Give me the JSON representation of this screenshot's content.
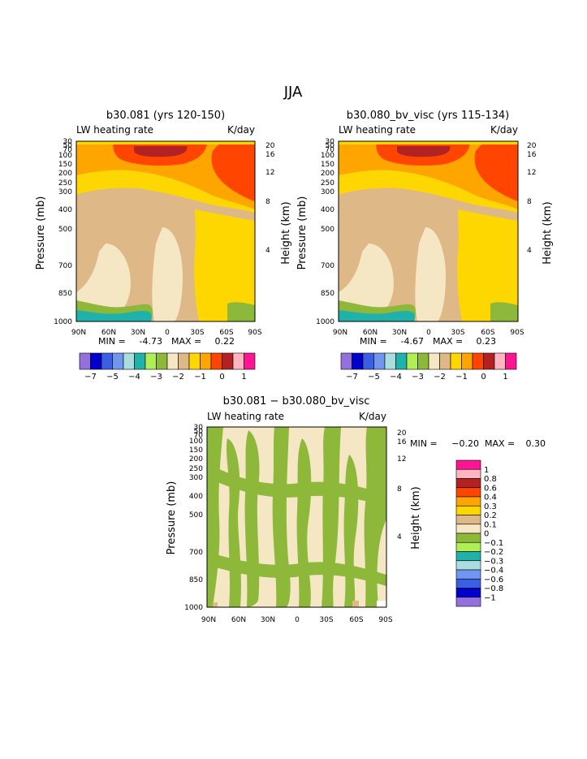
{
  "figure": {
    "title": "JJA"
  },
  "chart_data": [
    {
      "type": "heatmap",
      "id": "panel-1",
      "title": "b30.081 (yrs 120-150)",
      "left_label": "LW heating rate",
      "right_label": "K/day",
      "ylabel": "Pressure (mb)",
      "y2label": "Height (km)",
      "x_ticks": [
        "90N",
        "60N",
        "30N",
        "0",
        "30S",
        "60S",
        "90S"
      ],
      "y_ticks": [
        "30",
        "50",
        "70",
        "100",
        "150",
        "200",
        "250",
        "300",
        "400",
        "500",
        "700",
        "850",
        "1000"
      ],
      "y2_ticks": [
        "20",
        "16",
        "12",
        "8",
        "4"
      ],
      "min_label": "MIN =",
      "min_value": "-4.73",
      "max_label": "MAX =",
      "max_value": "0.22",
      "colorbar": {
        "orientation": "horizontal",
        "colors": [
          "#9370db",
          "#0000cd",
          "#3a5fe0",
          "#7096f0",
          "#aadddd",
          "#20b2aa",
          "#b0ee55",
          "#8db83a",
          "#f5e6c4",
          "#deb887",
          "#ffd700",
          "#ffa500",
          "#ff4500",
          "#b22222",
          "#ffb6c1",
          "#ff1493"
        ],
        "labels": [
          "−7",
          "−5",
          "−4",
          "−3",
          "−2",
          "−1",
          "0",
          "1"
        ]
      }
    },
    {
      "type": "heatmap",
      "id": "panel-2",
      "title": "b30.080_bv_visc (yrs 115-134)",
      "left_label": "LW heating rate",
      "right_label": "K/day",
      "ylabel": "Pressure (mb)",
      "y2label": "Height (km)",
      "x_ticks": [
        "90N",
        "60N",
        "30N",
        "0",
        "30S",
        "60S",
        "90S"
      ],
      "y_ticks": [
        "30",
        "50",
        "70",
        "100",
        "150",
        "200",
        "250",
        "300",
        "400",
        "500",
        "700",
        "850",
        "1000"
      ],
      "y2_ticks": [
        "20",
        "16",
        "12",
        "8",
        "4"
      ],
      "min_label": "MIN =",
      "min_value": "-4.67",
      "max_label": "MAX =",
      "max_value": "0.23",
      "colorbar": {
        "orientation": "horizontal",
        "colors": [
          "#9370db",
          "#0000cd",
          "#3a5fe0",
          "#7096f0",
          "#aadddd",
          "#20b2aa",
          "#b0ee55",
          "#8db83a",
          "#f5e6c4",
          "#deb887",
          "#ffd700",
          "#ffa500",
          "#ff4500",
          "#b22222",
          "#ffb6c1",
          "#ff1493"
        ],
        "labels": [
          "−7",
          "−5",
          "−4",
          "−3",
          "−2",
          "−1",
          "0",
          "1"
        ]
      }
    },
    {
      "type": "heatmap",
      "id": "panel-diff",
      "title": "b30.081 − b30.080_bv_visc",
      "left_label": "LW heating rate",
      "right_label": "K/day",
      "ylabel": "Pressure (mb)",
      "y2label": "Height (km)",
      "x_ticks": [
        "90N",
        "60N",
        "30N",
        "0",
        "30S",
        "60S",
        "90S"
      ],
      "y_ticks": [
        "30",
        "50",
        "70",
        "100",
        "150",
        "200",
        "250",
        "300",
        "400",
        "500",
        "700",
        "850",
        "1000"
      ],
      "y2_ticks": [
        "20",
        "16",
        "12",
        "8",
        "4"
      ],
      "min_label": "MIN =",
      "min_value": "−0.20",
      "max_label": "MAX =",
      "max_value": "0.30",
      "colorbar": {
        "orientation": "vertical",
        "colors": [
          "#ff1493",
          "#ffb6c1",
          "#b22222",
          "#ff4500",
          "#ffa500",
          "#ffd700",
          "#deb887",
          "#f5e6c4",
          "#8db83a",
          "#b0ee55",
          "#20b2aa",
          "#aadddd",
          "#7096f0",
          "#3a5fe0",
          "#0000cd",
          "#9370db"
        ],
        "labels": [
          "1",
          "0.8",
          "0.6",
          "0.4",
          "0.3",
          "0.2",
          "0.1",
          "0",
          "−0.1",
          "−0.2",
          "−0.3",
          "−0.4",
          "−0.6",
          "−0.8",
          "−1"
        ]
      }
    }
  ]
}
